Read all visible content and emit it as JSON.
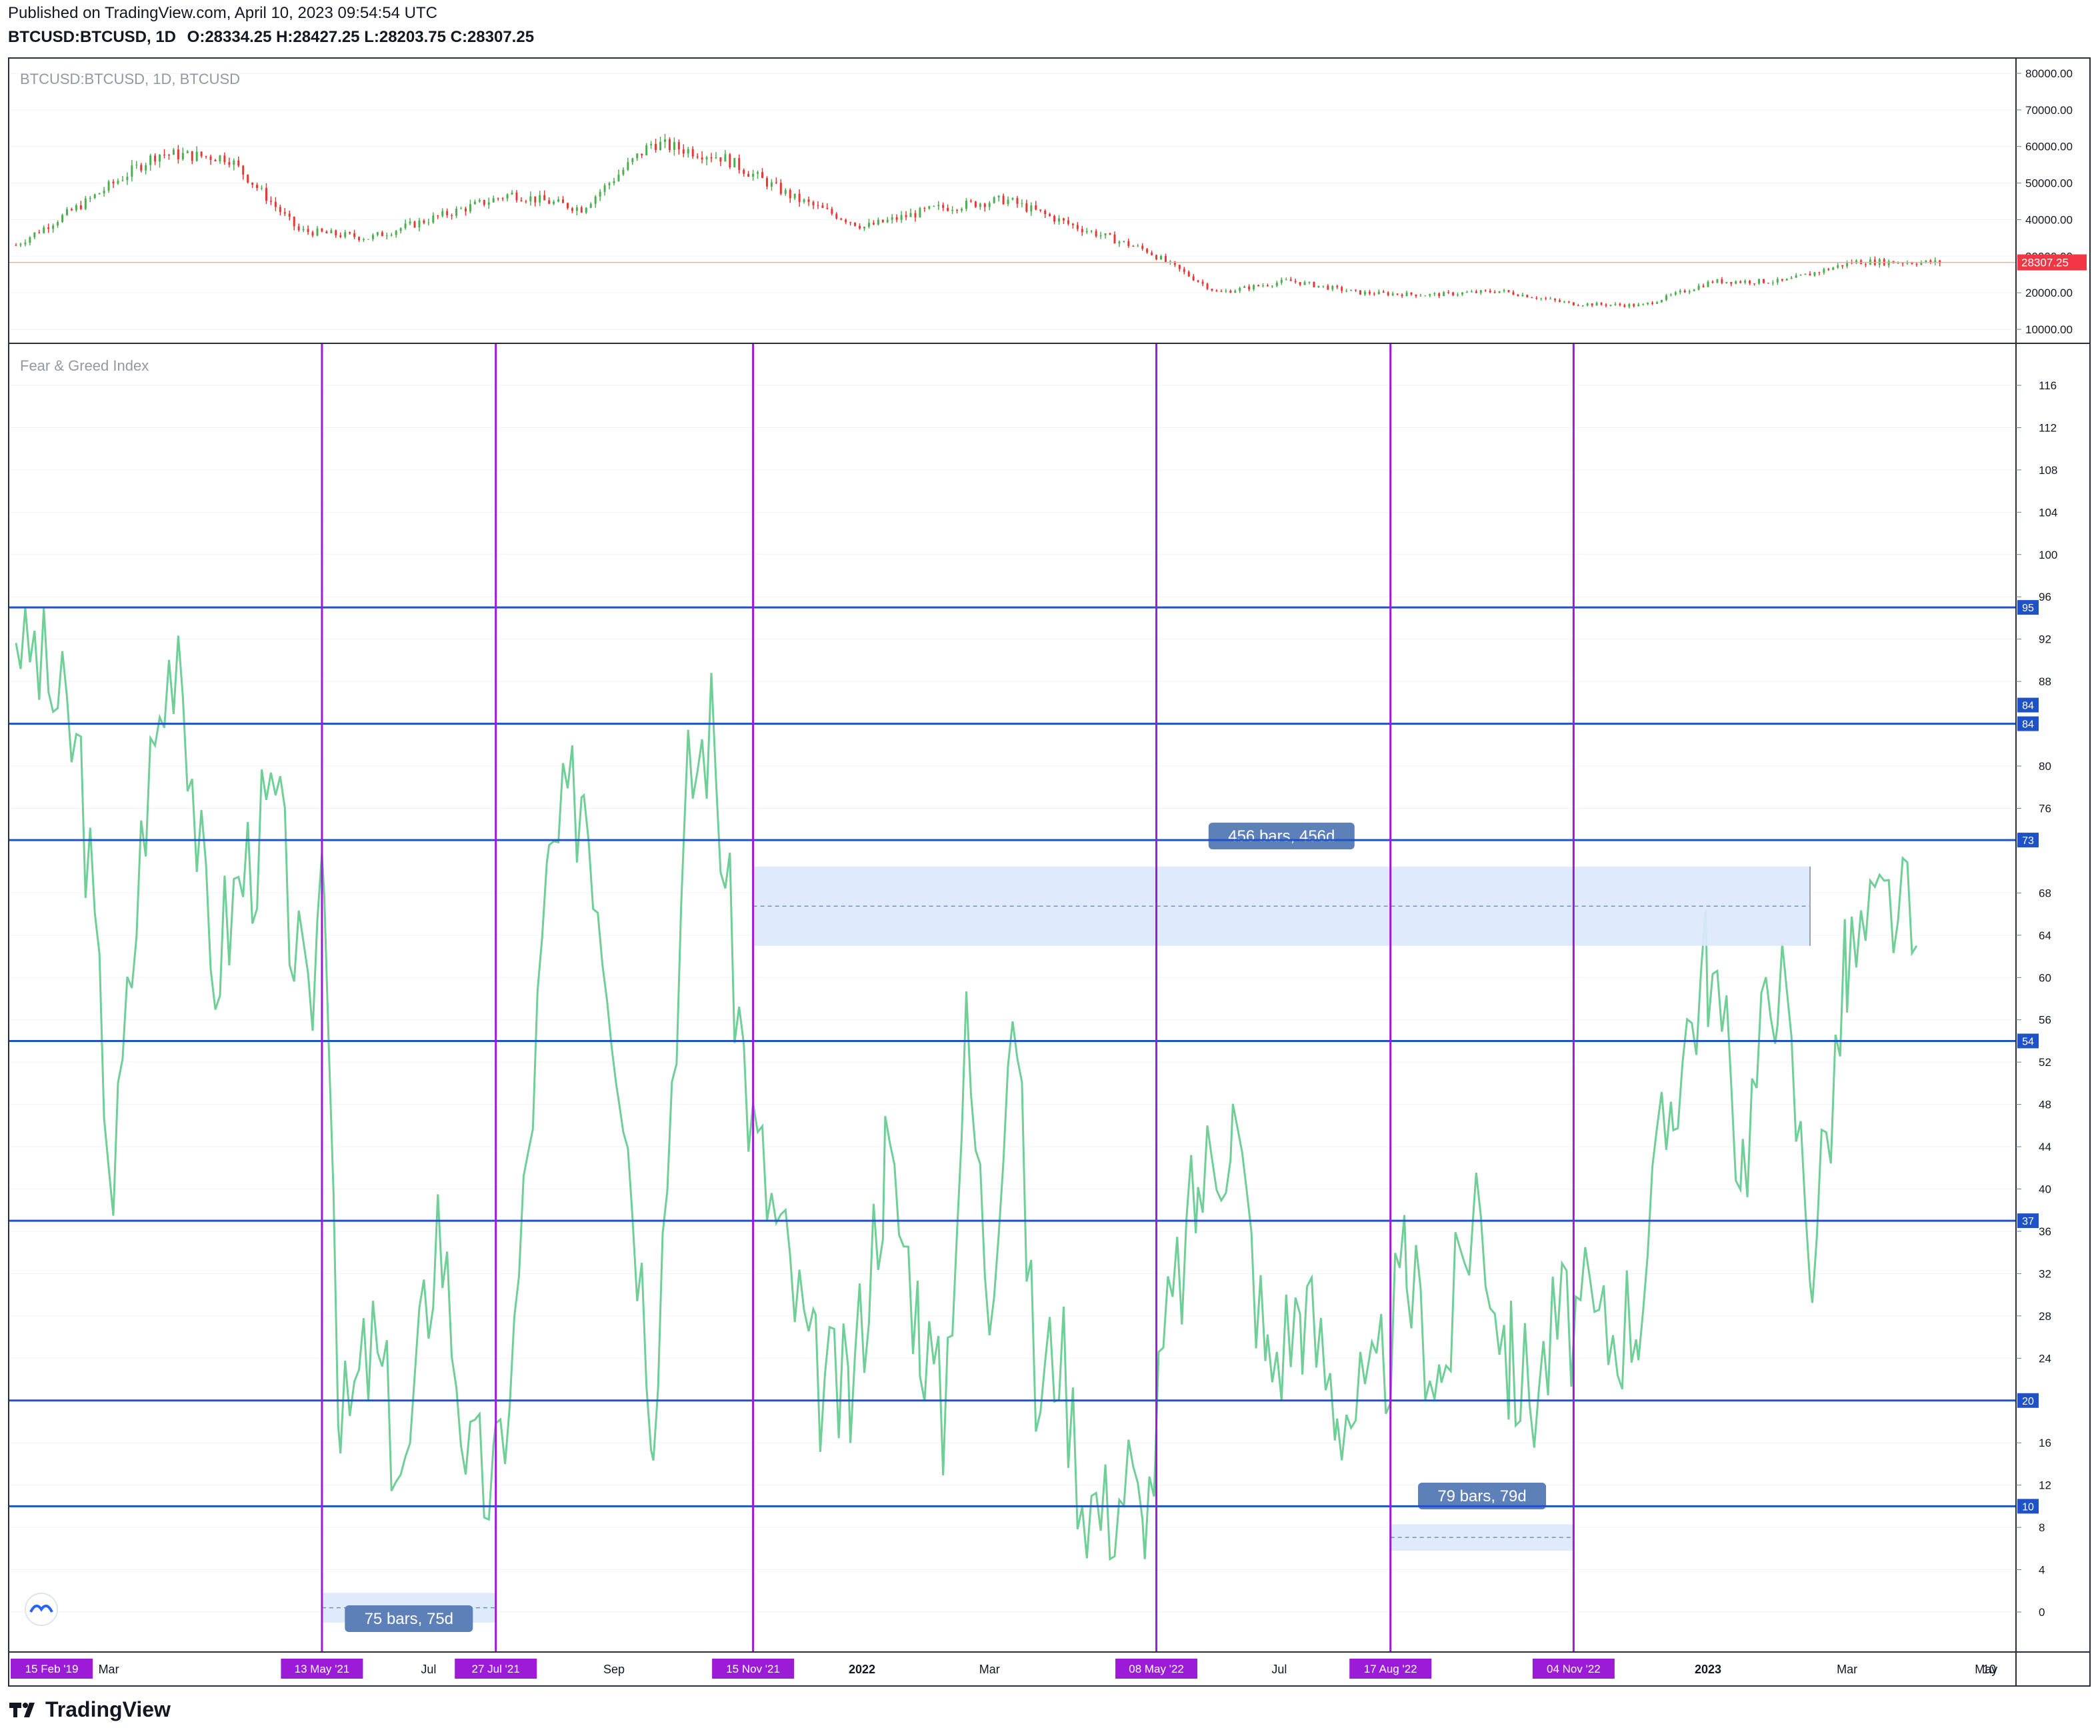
{
  "header": {
    "published": "Published on TradingView.com, April 10, 2023 09:54:54 UTC",
    "symbol_line": "BTCUSD:BTCUSD, 1D",
    "ohlc": "O:28334.25 H:28427.25 L:28203.75 C:28307.25"
  },
  "footer": {
    "brand": "TradingView"
  },
  "colors": {
    "line": "#6fcf97",
    "hline": "#1e53c8",
    "vline": "#9b1bd6",
    "up": "#4caf50",
    "down": "#e53935",
    "price_tag": "#f23645",
    "range_fill": "#dbe9fc"
  },
  "chart_data": [
    {
      "type": "candlestick",
      "title": "BTCUSD:BTCUSD, 1D, BTCUSD",
      "ylim": [
        10000,
        80000
      ],
      "y_ticks": [
        "80000.00",
        "70000.00",
        "60000.00",
        "50000.00",
        "40000.00",
        "30000.00",
        "20000.00",
        "10000.00"
      ],
      "last_price": "28307.25",
      "series": [
        {
          "x": [
            "2021-01",
            "2021-02",
            "2021-03",
            "2021-04",
            "2021-05",
            "2021-06",
            "2021-07",
            "2021-08",
            "2021-09",
            "2021-10",
            "2021-11",
            "2021-12",
            "2022-01",
            "2022-02",
            "2022-03",
            "2022-04",
            "2022-05",
            "2022-06",
            "2022-07",
            "2022-08",
            "2022-09",
            "2022-10",
            "2022-11",
            "2022-12",
            "2023-01",
            "2023-02",
            "2023-03",
            "2023-04"
          ],
          "close": [
            33000,
            45000,
            58000,
            57000,
            37000,
            35000,
            41000,
            47000,
            43000,
            61000,
            57000,
            46000,
            38000,
            43000,
            45500,
            38000,
            31500,
            20000,
            23300,
            20000,
            19400,
            20500,
            17000,
            16500,
            23100,
            23100,
            28500,
            28300
          ]
        }
      ]
    },
    {
      "type": "line",
      "title": "Fear & Greed Index",
      "ylim": [
        0,
        116
      ],
      "y_ticks": [
        "116",
        "112",
        "108",
        "104",
        "100",
        "96",
        "92",
        "88",
        "80",
        "76",
        "68",
        "64",
        "60",
        "56",
        "52",
        "48",
        "44",
        "40",
        "36",
        "32",
        "28",
        "24",
        "16",
        "12",
        "8",
        "4",
        "0"
      ],
      "horizontal_levels": [
        "95",
        "84",
        "84",
        "73",
        "54",
        "37",
        "20",
        "10"
      ],
      "x_ticks": [
        "15 Feb '19",
        "Mar",
        "13 May '21",
        "Jul",
        "27 Jul '21",
        "Sep",
        "15 Nov '21",
        "2022",
        "Mar",
        "08 May '22",
        "Jul",
        "17 Aug '22",
        "04 Nov '22",
        "2023",
        "Mar",
        "May",
        "10"
      ],
      "vertical_markers": [
        "13 May '21",
        "27 Jul '21",
        "15 Nov '21",
        "08 May '22",
        "17 Aug '22",
        "04 Nov '22"
      ],
      "measurements": [
        "75 bars, 75d",
        "456 bars, 456d",
        "79 bars, 79d"
      ],
      "series": [
        {
          "x_days_from_jan_2021": [
            0,
            14,
            28,
            42,
            56,
            70,
            84,
            98,
            112,
            126,
            133,
            140,
            154,
            168,
            182,
            196,
            207,
            215,
            230,
            245,
            260,
            275,
            290,
            300,
            310,
            318,
            330,
            345,
            360,
            375,
            390,
            400,
            410,
            420,
            430,
            440,
            450,
            460,
            470,
            480,
            487,
            495,
            510,
            525,
            540,
            555,
            570,
            585,
            600,
            615,
            630,
            645,
            655,
            665,
            675,
            685,
            700,
            715,
            730,
            745,
            760,
            775,
            790,
            810,
            820
          ],
          "y": [
            94,
            88,
            80,
            40,
            77,
            94,
            60,
            70,
            76,
            54,
            74,
            16,
            25,
            12,
            38,
            13,
            12,
            26,
            70,
            79,
            54,
            20,
            78,
            84,
            60,
            45,
            35,
            22,
            20,
            43,
            28,
            18,
            54,
            30,
            60,
            20,
            26,
            12,
            9,
            13,
            6,
            24,
            40,
            47,
            23,
            29,
            20,
            19,
            32,
            22,
            40,
            23,
            21,
            27,
            28,
            26,
            29,
            50,
            62,
            43,
            62,
            34,
            61,
            67,
            63
          ]
        }
      ]
    }
  ]
}
